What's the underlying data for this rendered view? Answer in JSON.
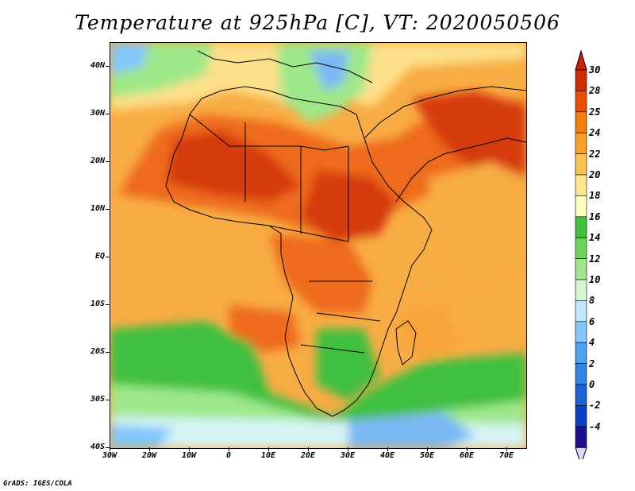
{
  "title": "Temperature at 925hPa [C], VT: 2020050506",
  "footer": "GrADS: IGES/COLA",
  "axes": {
    "lat_labels": [
      "40N",
      "30N",
      "20N",
      "10N",
      "EQ",
      "10S",
      "20S",
      "30S",
      "40S"
    ],
    "lon_labels": [
      "30W",
      "20W",
      "10W",
      "0",
      "10E",
      "20E",
      "30E",
      "40E",
      "50E",
      "60E",
      "70E"
    ]
  },
  "legend": {
    "labels": [
      "30",
      "28",
      "25",
      "24",
      "22",
      "20",
      "18",
      "16",
      "14",
      "12",
      "10",
      "8",
      "6",
      "4",
      "2",
      "0",
      "-2",
      "-4"
    ],
    "colors": [
      "#d22a00",
      "#ee4a00",
      "#f87e0a",
      "#f9a028",
      "#fbc352",
      "#fde68e",
      "#fefebe",
      "#3cc43a",
      "#6cd45a",
      "#a0e68c",
      "#d6f6d0",
      "#c0e8fe",
      "#82c6fa",
      "#48a4f0",
      "#2f84e6",
      "#1a62d8",
      "#0a3ec6",
      "#1a1090"
    ],
    "top_arrow_color": "#d21e00",
    "bottom_arrow_color": "#dcd6fa"
  },
  "colors": {
    "hot": "#d53a10",
    "warm": "#ee6a1a",
    "orange": "#f8a43a",
    "cream": "#fde08a",
    "green": "#40c040",
    "light_green": "#9ee88a",
    "pale": "#d6f4f6",
    "blue": "#7ab8f4"
  }
}
